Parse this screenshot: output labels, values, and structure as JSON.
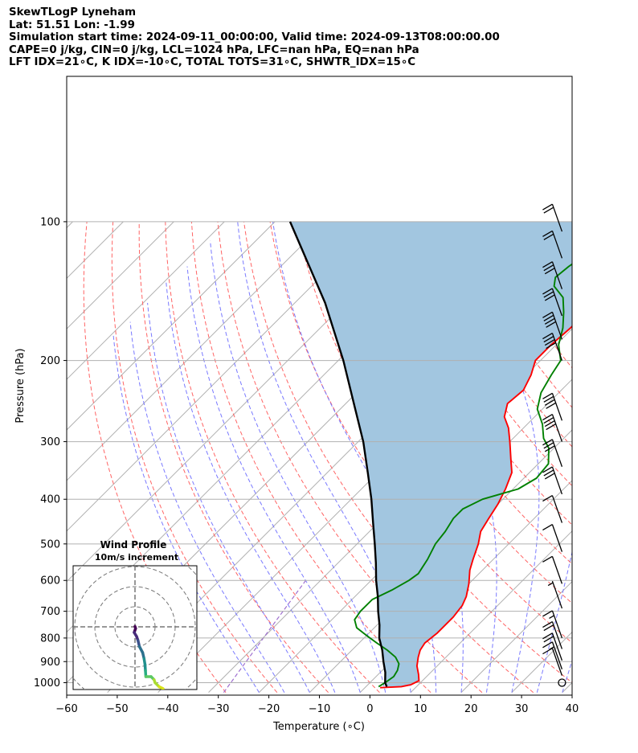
{
  "title_lines": [
    "SkewTLogP Lyneham",
    "Lat: 51.51   Lon: -1.99",
    "Simulation start time: 2024-09-11_00:00:00, Valid time: 2024-09-13T08:00:00.00",
    "CAPE=0 j/kg, CIN=0 j/kg, LCL=1024 hPa, LFC=nan hPa, EQ=nan hPa",
    "LFT IDX=21∘C, K IDX=-10∘C, TOTAL TOTS=31∘C, SHWTR_IDX=15∘C"
  ],
  "chart_data": {
    "type": "line",
    "ylabel": "Pressure (hPa)",
    "xlabel": "Temperature (∘C)",
    "xlim": [
      -60,
      40
    ],
    "ylim": [
      1050,
      100
    ],
    "y_scale": "log",
    "xticks": [
      -60,
      -50,
      -40,
      -30,
      -20,
      -10,
      0,
      10,
      20,
      30,
      40
    ],
    "yticks": [
      100,
      200,
      300,
      400,
      500,
      600,
      700,
      800,
      900,
      1000
    ],
    "series": [
      {
        "name": "Temperature",
        "color": "#ff0000",
        "points": [
          [
            1025,
            3
          ],
          [
            1020,
            7
          ],
          [
            1010,
            8.5
          ],
          [
            990,
            9.3
          ],
          [
            960,
            8
          ],
          [
            920,
            6
          ],
          [
            880,
            4.5
          ],
          [
            850,
            3.5
          ],
          [
            820,
            3
          ],
          [
            780,
            3.5
          ],
          [
            720,
            3.5
          ],
          [
            680,
            3
          ],
          [
            650,
            2
          ],
          [
            610,
            0
          ],
          [
            570,
            -2.5
          ],
          [
            540,
            -4
          ],
          [
            500,
            -6
          ],
          [
            470,
            -8
          ],
          [
            440,
            -9
          ],
          [
            410,
            -10
          ],
          [
            380,
            -11.5
          ],
          [
            350,
            -13.5
          ],
          [
            330,
            -16
          ],
          [
            300,
            -20
          ],
          [
            280,
            -23
          ],
          [
            265,
            -26
          ],
          [
            248,
            -28
          ],
          [
            232,
            -27.5
          ],
          [
            215,
            -29
          ],
          [
            200,
            -31
          ],
          [
            185,
            -31
          ],
          [
            170,
            -30.5
          ],
          [
            155,
            -30.5
          ],
          [
            145,
            -29
          ],
          [
            135,
            -27.5
          ],
          [
            125,
            -25.5
          ],
          [
            115,
            -22.5
          ],
          [
            100,
            -19.5
          ]
        ]
      },
      {
        "name": "Dewpoint",
        "color": "#008000",
        "points": [
          [
            1020,
            2.5
          ],
          [
            1000,
            3
          ],
          [
            970,
            3.5
          ],
          [
            940,
            3
          ],
          [
            910,
            2
          ],
          [
            880,
            0
          ],
          [
            850,
            -3
          ],
          [
            820,
            -6.5
          ],
          [
            790,
            -10
          ],
          [
            760,
            -13.5
          ],
          [
            730,
            -15.5
          ],
          [
            700,
            -16
          ],
          [
            660,
            -16
          ],
          [
            630,
            -14
          ],
          [
            600,
            -12.5
          ],
          [
            580,
            -12
          ],
          [
            540,
            -13
          ],
          [
            500,
            -14.5
          ],
          [
            470,
            -15
          ],
          [
            440,
            -16
          ],
          [
            420,
            -16
          ],
          [
            400,
            -14
          ],
          [
            380,
            -9
          ],
          [
            360,
            -7.5
          ],
          [
            335,
            -8
          ],
          [
            310,
            -11
          ],
          [
            295,
            -14
          ],
          [
            275,
            -17
          ],
          [
            255,
            -21
          ],
          [
            235,
            -23.5
          ],
          [
            215,
            -25
          ],
          [
            200,
            -26
          ],
          [
            185,
            -29.5
          ],
          [
            170,
            -32
          ],
          [
            157,
            -35
          ],
          [
            146,
            -38
          ],
          [
            138,
            -42
          ],
          [
            132,
            -43.5
          ],
          [
            125,
            -43
          ],
          [
            112,
            -41
          ],
          [
            100,
            -38
          ]
        ]
      },
      {
        "name": "Parcel",
        "color": "#000000",
        "points": [
          [
            1020,
            4.1
          ],
          [
            1000,
            3
          ],
          [
            950,
            1
          ],
          [
            900,
            -1.5
          ],
          [
            850,
            -4
          ],
          [
            800,
            -7
          ],
          [
            750,
            -9.5
          ],
          [
            700,
            -12.5
          ],
          [
            650,
            -15.5
          ],
          [
            600,
            -19
          ],
          [
            550,
            -22.5
          ],
          [
            500,
            -26.5
          ],
          [
            450,
            -31
          ],
          [
            400,
            -36
          ],
          [
            350,
            -42
          ],
          [
            300,
            -49
          ],
          [
            250,
            -58
          ],
          [
            200,
            -69
          ],
          [
            150,
            -84
          ],
          [
            100,
            -107
          ]
        ]
      }
    ],
    "shaded_region": {
      "between": [
        "Temperature",
        "Parcel"
      ],
      "color": "#a2c6e0"
    },
    "wind_barbs": {
      "x_position": 38,
      "side": "right",
      "levels": [
        {
          "p": 1000,
          "speed_kt": 0
        },
        {
          "p": 965,
          "speed_kt": 10
        },
        {
          "p": 935,
          "speed_kt": 15
        },
        {
          "p": 895,
          "speed_kt": 20
        },
        {
          "p": 845,
          "speed_kt": 20
        },
        {
          "p": 800,
          "speed_kt": 15
        },
        {
          "p": 690,
          "speed_kt": 5
        },
        {
          "p": 610,
          "speed_kt": 10
        },
        {
          "p": 520,
          "speed_kt": 10
        },
        {
          "p": 450,
          "speed_kt": 10
        },
        {
          "p": 390,
          "speed_kt": 30
        },
        {
          "p": 340,
          "speed_kt": 30
        },
        {
          "p": 300,
          "speed_kt": 40
        },
        {
          "p": 270,
          "speed_kt": 40
        },
        {
          "p": 200,
          "speed_kt": 40
        },
        {
          "p": 180,
          "speed_kt": 40
        },
        {
          "p": 160,
          "speed_kt": 30
        },
        {
          "p": 140,
          "speed_kt": 30
        },
        {
          "p": 120,
          "speed_kt": 20
        },
        {
          "p": 105,
          "speed_kt": 20
        }
      ]
    },
    "background_lines": {
      "isotherms_color": "#b0b0b0",
      "dry_adiabats_color": "#ff6464",
      "moist_adiabats_color": "#6a6aff",
      "mixing_ratio_color": "#9f6fd0"
    },
    "inset": {
      "title": "Wind Profile",
      "subtitle": "10m/s increment",
      "type": "hodograph",
      "rings": [
        10,
        20,
        30,
        40
      ],
      "colormap": "viridis",
      "points": [
        [
          0,
          5
        ],
        [
          0.3,
          4
        ],
        [
          -0.4,
          2
        ],
        [
          0.8,
          0
        ],
        [
          1.5,
          -2
        ],
        [
          2.2,
          -5
        ],
        [
          3.8,
          -8
        ],
        [
          4.5,
          -11
        ],
        [
          5,
          -14
        ],
        [
          5.2,
          -17
        ],
        [
          5.4,
          -20
        ],
        [
          8,
          -20
        ],
        [
          9.5,
          -21.5
        ],
        [
          10,
          -23
        ],
        [
          12,
          -25
        ],
        [
          14,
          -26
        ]
      ]
    }
  }
}
